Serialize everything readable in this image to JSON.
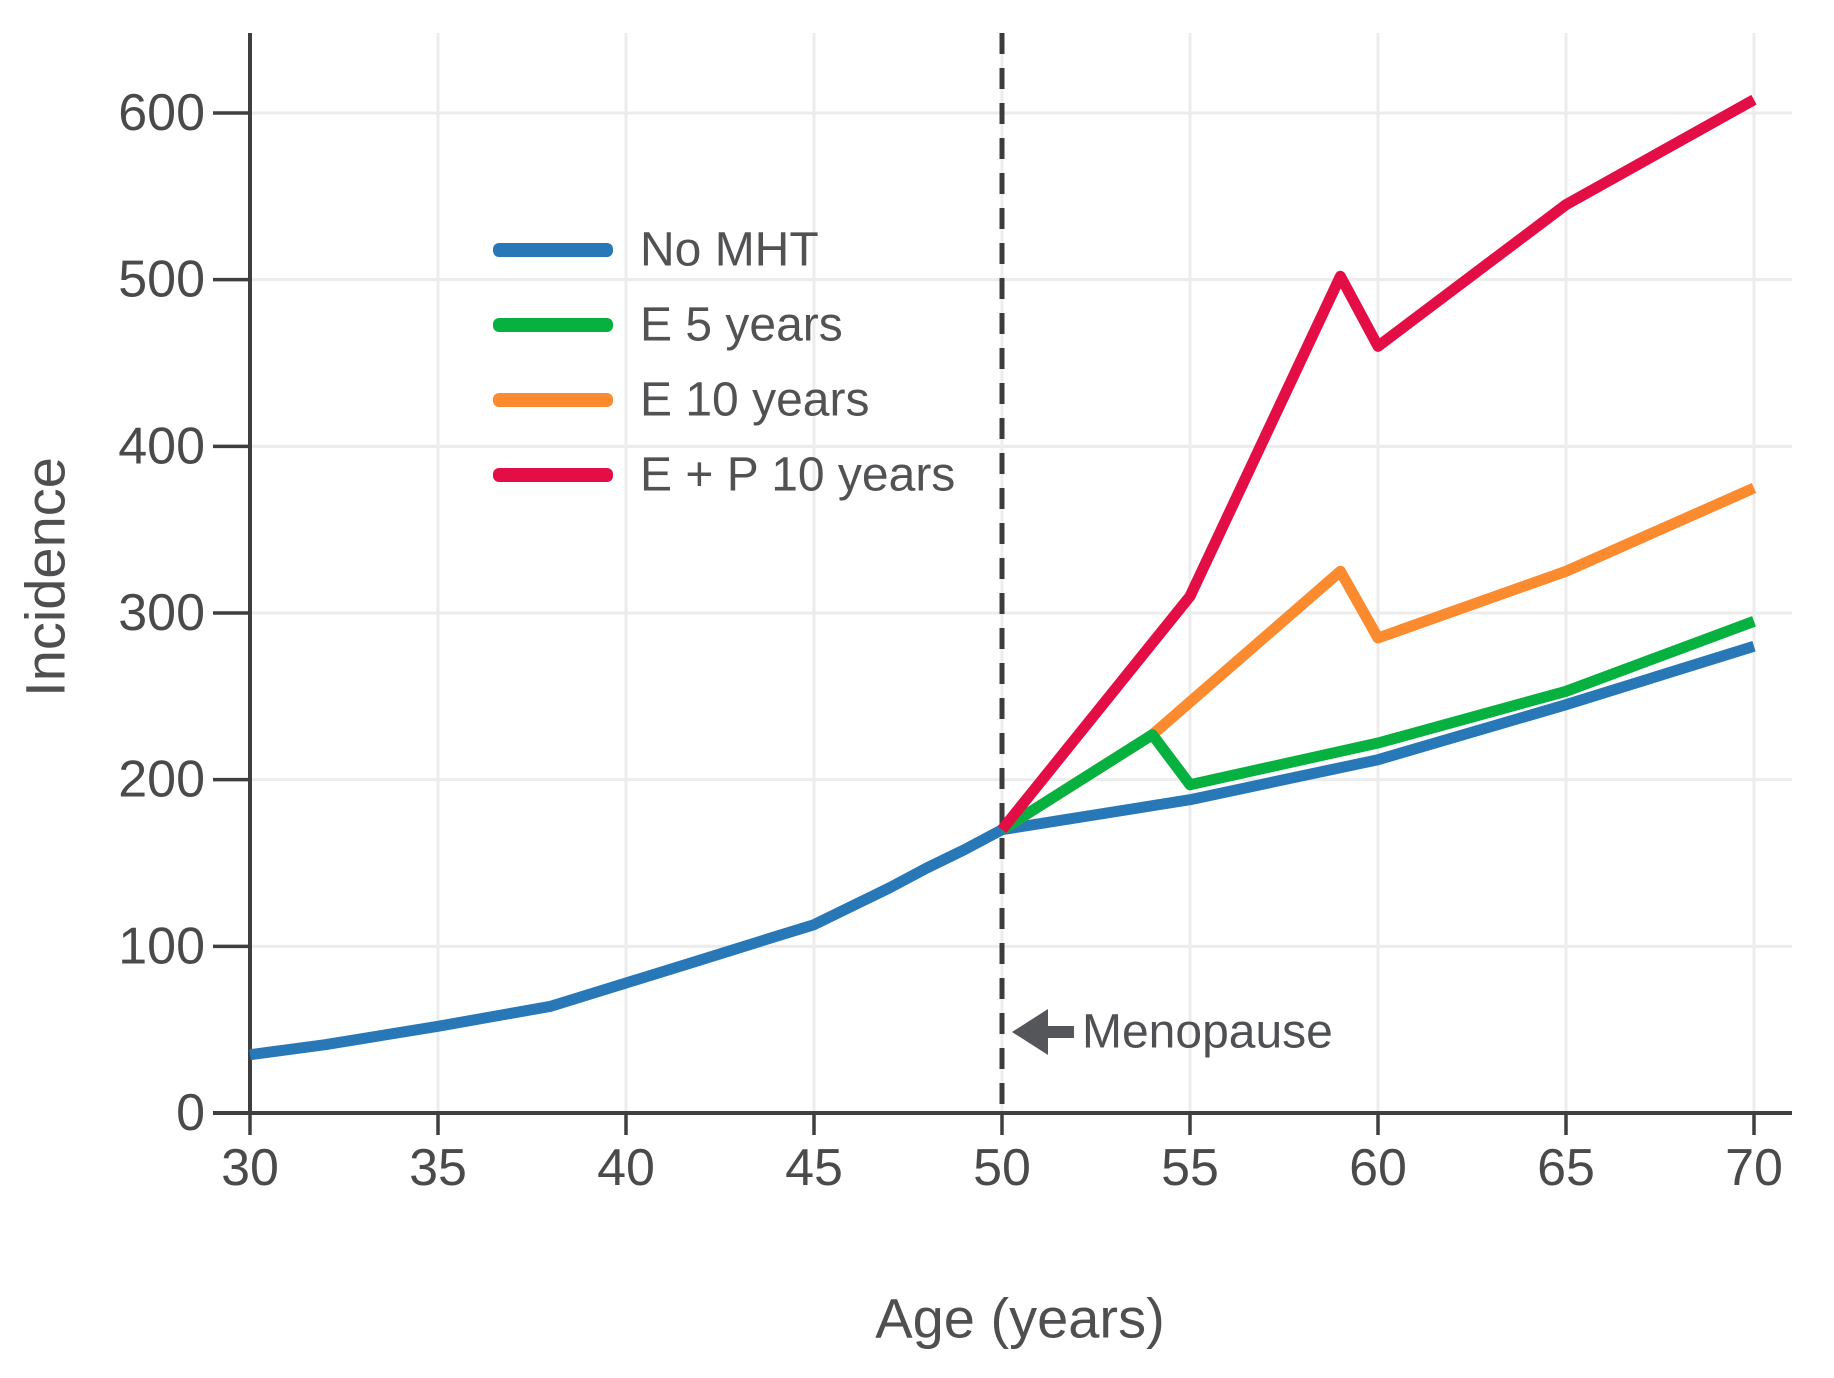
{
  "chart_data": {
    "type": "line",
    "title": "",
    "xlabel": "Age (years)",
    "ylabel": "Incidence",
    "xlim": [
      30,
      70
    ],
    "ylim": [
      0,
      650
    ],
    "xticks": [
      30,
      35,
      40,
      45,
      50,
      55,
      60,
      65,
      70
    ],
    "yticks": [
      0,
      100,
      200,
      300,
      400,
      500,
      600
    ],
    "grid": true,
    "legend_position": "upper-left-inside",
    "vline": {
      "x": 50,
      "style": "dashed",
      "color": "#3c3c3c"
    },
    "annotation": {
      "text": "Menopause",
      "icon": "left-arrow-icon",
      "x": 50.3,
      "y": 49,
      "color": "#55565a"
    },
    "series": [
      {
        "name": "No MHT",
        "color": "#2878B8",
        "x": [
          30,
          32,
          35,
          38,
          40,
          42,
          44,
          45,
          46,
          47,
          48,
          49,
          50,
          55,
          60,
          65,
          70
        ],
        "y": [
          35,
          41,
          52,
          64,
          78,
          92,
          106,
          113,
          124,
          135,
          147,
          158,
          170,
          188,
          212,
          245,
          280
        ]
      },
      {
        "name": "E 5 years",
        "color": "#06B13F",
        "x": [
          50,
          54,
          55,
          60,
          65,
          70
        ],
        "y": [
          170,
          227,
          197,
          222,
          253,
          295
        ]
      },
      {
        "name": "E 10 years",
        "color": "#FC8A2E",
        "x": [
          50,
          54,
          59,
          60,
          65,
          70
        ],
        "y": [
          170,
          227,
          325,
          285,
          325,
          375
        ]
      },
      {
        "name": "E + P 10 years",
        "color": "#E20E45",
        "x": [
          50,
          55,
          59,
          60,
          65,
          70
        ],
        "y": [
          170,
          310,
          502,
          460,
          545,
          608
        ]
      }
    ],
    "colors": {
      "background": "#FFFFFF",
      "grid": "#ECECEC",
      "spine": "#3F3F3F",
      "tick_label": "#4A4A4A"
    }
  }
}
